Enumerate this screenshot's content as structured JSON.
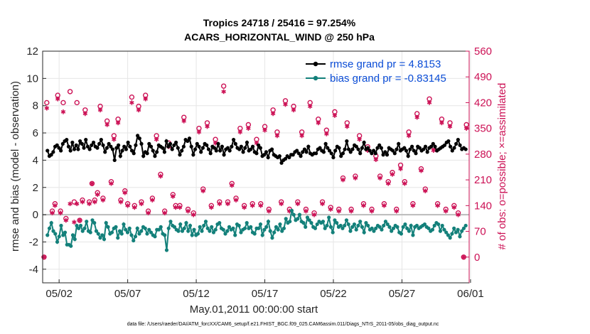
{
  "chart_data": {
    "type": "line",
    "title": "Tropics 24718 / 25416 = 97.254%",
    "subtitle": "ACARS_HORIZONTAL_WIND @ 250 hPa",
    "xlabel": "May.01,2011 00:00:00 start",
    "ylabel": "rmse and bias (model - observation)",
    "ylabel_right": "# of obs: o=possible; ×=assimilated",
    "footer": "data file: /Users/raeder/DAI/ATM_forcXX/CAM6_setup/f.e21.FHIST_BGC.f09_025.CAM6assim.011/Diags_NTrS_2011-05/obs_diag_output.nc",
    "xlim": [
      0.3,
      31.4
    ],
    "ylim": [
      -5,
      12
    ],
    "ylim_right": [
      -70,
      560
    ],
    "x_ticks": [
      {
        "value": 1.5,
        "label": "05/02"
      },
      {
        "value": 6.5,
        "label": "05/07"
      },
      {
        "value": 11.5,
        "label": "05/12"
      },
      {
        "value": 16.5,
        "label": "05/17"
      },
      {
        "value": 21.5,
        "label": "05/22"
      },
      {
        "value": 26.5,
        "label": "05/27"
      },
      {
        "value": 31.5,
        "label": "06/01"
      }
    ],
    "y_ticks": [
      -4,
      -2,
      0,
      2,
      4,
      6,
      8,
      10,
      12
    ],
    "y_ticks_right": [
      0,
      70,
      140,
      210,
      280,
      350,
      420,
      490,
      560
    ],
    "grid": true,
    "legend_position": "top-right",
    "colors": {
      "rmse": "#000000",
      "bias": "#13807a",
      "obs": "#cc1155",
      "axis_right": "#cc1155",
      "zero_line": "#bbbbbb"
    },
    "series": [
      {
        "name": "rmse grand pr = 4.8153",
        "values": [
          4.7,
          4.3,
          4.4,
          4.6,
          5.0,
          5.1,
          4.9,
          4.7,
          5.2,
          5.4,
          5.5,
          5.0,
          4.7,
          5.3,
          4.8,
          5.1,
          4.8,
          5.4,
          5.2,
          4.9,
          5.5,
          5.0,
          4.8,
          5.1,
          5.3,
          5.0,
          4.9,
          5.2,
          5.5,
          5.1,
          4.6,
          4.9,
          5.2,
          5.0,
          4.8,
          4.0,
          4.9,
          5.1,
          4.3,
          4.7,
          5.0,
          4.8,
          5.3,
          5.0,
          4.7,
          4.5,
          5.1,
          5.8,
          5.6,
          5.2,
          4.3,
          4.6,
          4.5,
          5.2,
          5.0,
          4.7,
          4.3,
          4.6,
          5.1,
          5.0,
          4.9,
          4.6,
          5.4,
          5.0,
          5.2,
          4.8,
          5.1,
          5.3,
          4.9,
          4.4,
          4.7,
          5.0,
          5.5,
          5.4,
          5.6,
          5.0,
          4.4,
          4.8,
          5.2,
          5.0,
          4.6,
          4.9,
          5.2,
          5.1,
          4.8,
          4.5,
          5.0,
          4.9,
          4.7,
          5.2,
          4.7,
          5.0,
          4.4,
          4.8,
          4.9,
          4.7,
          5.0,
          5.5,
          5.2,
          4.9,
          4.8,
          5.0,
          4.6,
          4.9,
          5.3,
          4.7,
          4.8,
          5.0,
          4.6,
          4.5,
          5.1,
          4.9,
          4.3,
          4.4,
          4.6,
          4.2,
          4.7,
          4.8,
          4.4,
          4.3,
          4.2,
          4.3,
          3.8,
          4.0,
          4.1,
          4.3,
          4.2,
          4.4,
          4.4,
          4.6,
          4.7,
          4.5,
          4.3,
          4.6,
          4.8,
          4.6,
          5.0,
          4.5,
          4.4,
          4.5,
          4.5,
          4.8,
          4.9,
          4.7,
          4.6,
          5.2,
          4.9,
          4.7,
          4.5,
          4.2,
          4.7,
          5.0,
          4.9,
          4.3,
          4.5,
          4.8,
          5.4,
          4.8,
          4.6,
          4.8,
          5.1,
          5.0,
          4.8,
          4.5,
          4.9,
          5.3,
          4.8,
          4.9,
          4.7,
          4.5,
          4.7,
          4.5,
          4.9,
          5.1,
          4.9,
          4.4,
          4.6,
          4.4,
          4.9,
          4.8,
          4.7,
          4.5,
          4.8,
          5.2,
          4.7,
          4.8,
          4.9,
          4.7,
          4.3,
          4.8,
          5.0,
          4.7,
          4.5,
          5.0,
          4.9,
          4.7,
          4.8,
          5.0,
          4.6,
          4.9,
          5.0,
          5.2,
          5.0,
          4.7,
          4.8,
          4.9,
          5.0,
          5.1,
          5.3,
          5.4,
          5.0,
          4.7,
          4.9,
          5.2,
          5.5,
          5.1,
          4.8,
          4.9,
          4.8
        ]
      },
      {
        "name": "bias grand pr = -0.83145",
        "values": [
          -1.5,
          -1.0,
          -0.6,
          -1.2,
          -1.4,
          -2.0,
          -1.6,
          -0.8,
          -1.5,
          -1.3,
          -2.2,
          -2.2,
          -2.3,
          -1.5,
          -1.8,
          -0.8,
          -1.0,
          -0.8,
          -1.2,
          -1.0,
          -0.5,
          -1.2,
          -1.3,
          -0.4,
          -0.6,
          -1.2,
          -1.4,
          -1.7,
          -1.5,
          -1.8,
          -0.6,
          -0.9,
          -1.4,
          -1.3,
          -1.0,
          -0.9,
          -1.7,
          -1.2,
          -1.4,
          -0.7,
          -1.1,
          -1.3,
          -1.0,
          -1.5,
          -1.9,
          -1.6,
          -1.0,
          -1.4,
          -1.2,
          -0.9,
          -1.0,
          -1.4,
          -1.1,
          -1.3,
          -1.5,
          -1.6,
          -1.1,
          -1.1,
          -0.9,
          -1.4,
          -1.5,
          -2.6,
          -1.0,
          -0.5,
          -0.8,
          -0.9,
          -1.1,
          -1.2,
          -0.7,
          -1.2,
          -1.0,
          -0.6,
          -1.2,
          -0.8,
          -1.5,
          -1.1,
          -1.5,
          -1.4,
          -0.9,
          -1.2,
          -0.8,
          -0.5,
          -1.0,
          -1.2,
          -0.9,
          -1.3,
          -1.1,
          -0.7,
          -0.6,
          -1.0,
          -1.1,
          -1.4,
          -1.2,
          -0.9,
          -1.1,
          -1.0,
          -1.5,
          -0.7,
          -0.8,
          -1.3,
          -1.1,
          -1.0,
          -0.6,
          -1.0,
          -0.9,
          -1.3,
          -1.4,
          -1.0,
          -1.0,
          -0.7,
          -1.5,
          -1.1,
          -0.9,
          -0.5,
          -1.2,
          -1.7,
          -1.3,
          -0.9,
          -1.1,
          -0.7,
          -1.2,
          -1.0,
          -0.3,
          -0.6,
          -0.5,
          0.3,
          0.0,
          -0.4,
          -0.3,
          0.0,
          -0.5,
          -0.6,
          -0.9,
          -0.2,
          -0.4,
          -0.6,
          -0.9,
          -1.0,
          -0.7,
          -0.5,
          -0.6,
          -0.5,
          -1.0,
          -0.8,
          -0.2,
          -0.9,
          -1.3,
          -0.4,
          -0.6,
          -0.9,
          -0.8,
          -1.0,
          -0.8,
          -0.4,
          -0.7,
          -1.2,
          -0.9,
          -0.7,
          -1.1,
          -0.8,
          -0.5,
          -0.9,
          -1.3,
          -0.6,
          -0.8,
          -1.1,
          -1.0,
          -1.2,
          -1.0,
          -0.8,
          -0.9,
          -1.1,
          -0.8,
          -0.5,
          -0.7,
          -0.9,
          -1.2,
          -1.0,
          -0.8,
          -0.9,
          -1.3,
          -1.4,
          -0.9,
          -0.7,
          -1.0,
          -1.2,
          -0.8,
          -1.5,
          -0.9,
          -0.8,
          -1.0,
          -0.9,
          -0.8,
          -0.7,
          -0.9,
          -1.0,
          -1.2,
          -1.1,
          -0.8,
          -0.6,
          -0.7,
          -1.2,
          -0.8,
          -1.1,
          -1.3,
          -1.5,
          -1.7,
          -1.4,
          -1.0,
          -1.3,
          -1.1,
          -1.6,
          -1.2,
          -1.0,
          -0.8
        ]
      }
    ],
    "obs_possible": {
      "x": [
        0.4,
        0.6,
        1.0,
        1.2,
        1.4,
        1.6,
        1.8,
        2.0,
        2.3,
        2.6,
        2.8,
        3.0,
        3.2,
        3.4,
        3.7,
        3.9,
        4.1,
        4.3,
        4.5,
        4.7,
        5.0,
        5.3,
        5.5,
        5.8,
        6.0,
        6.3,
        6.5,
        6.8,
        7.0,
        7.3,
        7.5,
        7.8,
        8.0,
        8.3,
        8.6,
        8.9,
        9.2,
        9.5,
        9.8,
        10.0,
        10.3,
        10.6,
        10.9,
        11.3,
        11.7,
        12.0,
        12.3,
        12.6,
        12.9,
        13.2,
        13.5,
        13.8,
        14.1,
        14.4,
        14.7,
        15.0,
        15.3,
        15.6,
        15.9,
        16.2,
        16.5,
        16.8,
        17.1,
        17.4,
        17.7,
        18.0,
        18.3,
        18.6,
        18.9,
        19.2,
        19.5,
        19.8,
        20.1,
        20.4,
        20.7,
        21.0,
        21.3,
        21.6,
        21.9,
        22.2,
        22.5,
        22.8,
        23.1,
        23.4,
        23.7,
        24.0,
        24.3,
        24.6,
        24.9,
        25.2,
        25.5,
        25.8,
        26.1,
        26.4,
        26.7,
        27.0,
        27.3,
        27.6,
        27.9,
        28.2,
        28.5,
        28.8,
        29.1,
        29.4,
        29.7,
        30.0,
        30.3,
        30.6,
        31.0,
        31.2
      ],
      "y": [
        0,
        420,
        125,
        145,
        440,
        125,
        420,
        105,
        450,
        150,
        420,
        100,
        155,
        400,
        150,
        200,
        155,
        175,
        410,
        160,
        370,
        205,
        330,
        375,
        155,
        180,
        145,
        435,
        140,
        410,
        150,
        440,
        125,
        160,
        330,
        225,
        125,
        310,
        170,
        140,
        140,
        380,
        130,
        120,
        350,
        185,
        365,
        140,
        320,
        150,
        465,
        150,
        200,
        160,
        350,
        140,
        360,
        145,
        320,
        145,
        355,
        130,
        400,
        340,
        150,
        425,
        130,
        410,
        150,
        340,
        130,
        420,
        120,
        375,
        150,
        345,
        135,
        395,
        130,
        215,
        365,
        130,
        220,
        330,
        145,
        300,
        130,
        275,
        220,
        145,
        205,
        230,
        130,
        250,
        205,
        340,
        145,
        390,
        240,
        185,
        430,
        300,
        145,
        375,
        130,
        365,
        140,
        120,
        0,
        360
      ],
      "symbol": "o"
    },
    "obs_assimilated": {
      "x": [
        0.4,
        0.6,
        1.0,
        1.2,
        1.4,
        1.6,
        1.8,
        2.0,
        2.3,
        2.6,
        2.8,
        3.0,
        3.2,
        3.4,
        3.7,
        3.9,
        4.1,
        4.3,
        4.5,
        4.7,
        5.0,
        5.3,
        5.5,
        5.8,
        6.0,
        6.3,
        6.5,
        6.8,
        7.0,
        7.3,
        7.5,
        7.8,
        8.0,
        8.3,
        8.6,
        8.9,
        9.2,
        9.5,
        9.8,
        10.0,
        10.3,
        10.6,
        10.9,
        11.3,
        11.7,
        12.0,
        12.3,
        12.6,
        12.9,
        13.2,
        13.5,
        13.8,
        14.1,
        14.4,
        14.7,
        15.0,
        15.3,
        15.6,
        15.9,
        16.2,
        16.5,
        16.8,
        17.1,
        17.4,
        17.7,
        18.0,
        18.3,
        18.6,
        18.9,
        19.2,
        19.5,
        19.8,
        20.1,
        20.4,
        20.7,
        21.0,
        21.3,
        21.6,
        21.9,
        22.2,
        22.5,
        22.8,
        23.1,
        23.4,
        23.7,
        24.0,
        24.3,
        24.6,
        24.9,
        25.2,
        25.5,
        25.8,
        26.1,
        26.4,
        26.7,
        27.0,
        27.3,
        27.6,
        27.9,
        28.2,
        28.5,
        28.8,
        29.1,
        29.4,
        29.7,
        30.0,
        30.3,
        30.6,
        31.0,
        31.2
      ],
      "y": [
        0,
        405,
        120,
        140,
        430,
        120,
        395,
        100,
        145,
        95,
        145,
        100,
        150,
        390,
        145,
        200,
        150,
        170,
        400,
        155,
        360,
        200,
        320,
        365,
        150,
        175,
        140,
        420,
        135,
        400,
        145,
        430,
        120,
        155,
        320,
        220,
        120,
        300,
        165,
        135,
        135,
        370,
        125,
        115,
        340,
        180,
        355,
        135,
        310,
        145,
        450,
        145,
        195,
        155,
        340,
        135,
        350,
        140,
        310,
        140,
        345,
        125,
        390,
        330,
        145,
        415,
        125,
        400,
        145,
        330,
        125,
        410,
        115,
        365,
        145,
        335,
        130,
        385,
        125,
        210,
        355,
        125,
        215,
        320,
        140,
        290,
        125,
        265,
        215,
        140,
        200,
        225,
        125,
        240,
        200,
        330,
        140,
        380,
        235,
        180,
        420,
        290,
        140,
        365,
        125,
        355,
        135,
        115,
        0,
        350
      ],
      "symbol": "×"
    }
  }
}
